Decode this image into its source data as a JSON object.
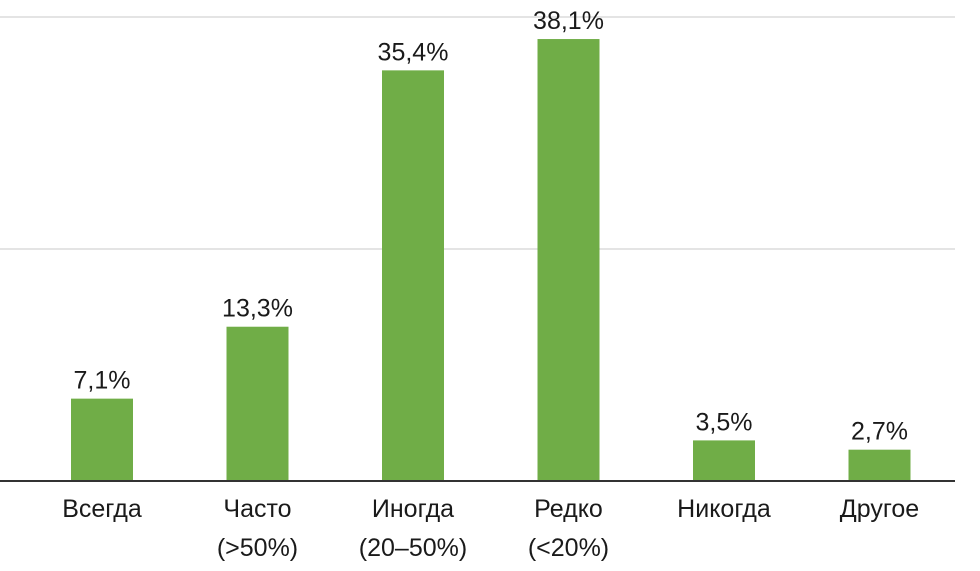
{
  "chart_data": {
    "type": "bar",
    "categories": [
      [
        "Всегда"
      ],
      [
        "Часто",
        "(>50%)"
      ],
      [
        "Иногда",
        "(20–50%)"
      ],
      [
        "Редко",
        "(<20%)"
      ],
      [
        "Никогда"
      ],
      [
        "Другое"
      ]
    ],
    "values": [
      7.1,
      13.3,
      35.4,
      38.1,
      3.5,
      2.7
    ],
    "value_labels": [
      "7,1%",
      "13,3%",
      "35,4%",
      "38,1%",
      "3,5%",
      "2,7%"
    ],
    "title": "",
    "xlabel": "",
    "ylabel": "",
    "ylim": [
      0,
      40
    ],
    "grid": true,
    "gridlines": [
      20,
      40
    ],
    "bar_color": "#70ad47",
    "axis_color": "#333333",
    "grid_color": "#c8c8c8"
  }
}
